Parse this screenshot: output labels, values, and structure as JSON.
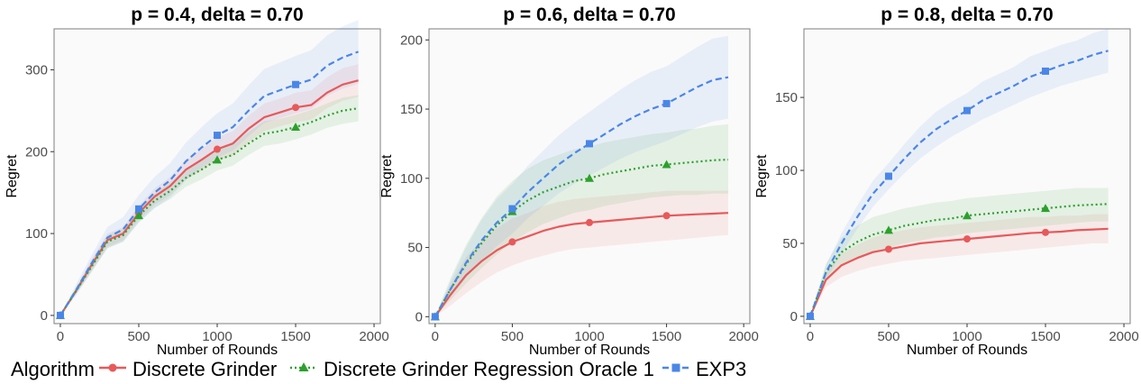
{
  "legend": {
    "title": "Algorithm",
    "entries": [
      "Discrete Grinder",
      "Discrete Grinder Regression Oracle 1",
      "EXP3"
    ]
  },
  "series_styles": [
    {
      "name": "Discrete Grinder",
      "color": "#e8595a",
      "dash": "solid",
      "marker": "circle"
    },
    {
      "name": "Discrete Grinder Regression Oracle 1",
      "color": "#2ca02c",
      "dash": "dotted",
      "marker": "triangle"
    },
    {
      "name": "EXP3",
      "color": "#4a86e8",
      "dash": "dashed",
      "marker": "square"
    }
  ],
  "chart_data": [
    {
      "type": "line",
      "title": "p = 0.4, delta = 0.70",
      "xlabel": "Number of Rounds",
      "ylabel": "Regret",
      "xlim": [
        -40,
        2040
      ],
      "ylim": [
        -10,
        350
      ],
      "xticks": [
        0,
        500,
        1000,
        1500,
        2000
      ],
      "yticks": [
        0,
        100,
        200,
        300
      ],
      "grid": false,
      "x": [
        0,
        100,
        200,
        300,
        400,
        500,
        600,
        700,
        800,
        900,
        1000,
        1100,
        1200,
        1300,
        1400,
        1500,
        1600,
        1700,
        1800,
        1900
      ],
      "marker_x": [
        0,
        500,
        1000,
        1500
      ],
      "series": [
        {
          "name": "Discrete Grinder",
          "values": [
            0,
            30,
            62,
            92,
            100,
            125,
            145,
            158,
            178,
            190,
            203,
            210,
            228,
            242,
            248,
            254,
            257,
            272,
            282,
            287
          ],
          "lower": [
            0,
            26,
            55,
            84,
            92,
            116,
            135,
            147,
            166,
            177,
            189,
            195,
            212,
            225,
            231,
            236,
            239,
            253,
            262,
            267
          ],
          "upper": [
            0,
            34,
            69,
            100,
            108,
            134,
            155,
            169,
            190,
            203,
            217,
            225,
            244,
            259,
            265,
            272,
            275,
            291,
            302,
            307
          ]
        },
        {
          "name": "Discrete Grinder Regression Oracle 1",
          "values": [
            0,
            30,
            60,
            90,
            98,
            122,
            140,
            152,
            168,
            178,
            190,
            196,
            210,
            222,
            225,
            230,
            236,
            244,
            250,
            253
          ],
          "lower": [
            0,
            26,
            53,
            82,
            90,
            114,
            131,
            142,
            157,
            166,
            177,
            183,
            196,
            207,
            210,
            215,
            221,
            229,
            234,
            237
          ],
          "upper": [
            0,
            34,
            67,
            98,
            106,
            130,
            149,
            162,
            179,
            190,
            203,
            209,
            224,
            237,
            240,
            245,
            251,
            259,
            266,
            269
          ]
        },
        {
          "name": "EXP3",
          "values": [
            0,
            31,
            64,
            95,
            105,
            130,
            150,
            165,
            188,
            205,
            220,
            230,
            250,
            268,
            275,
            282,
            288,
            305,
            315,
            322
          ],
          "lower": [
            0,
            24,
            54,
            82,
            90,
            113,
            131,
            144,
            165,
            180,
            193,
            201,
            219,
            235,
            241,
            247,
            252,
            268,
            277,
            283
          ],
          "upper": [
            0,
            38,
            74,
            108,
            120,
            147,
            169,
            186,
            211,
            230,
            247,
            259,
            281,
            301,
            309,
            317,
            324,
            342,
            353,
            361
          ]
        }
      ]
    },
    {
      "type": "line",
      "title": "p = 0.6, delta = 0.70",
      "xlabel": "Number of Rounds",
      "ylabel": "Regret",
      "xlim": [
        -40,
        2040
      ],
      "ylim": [
        -5,
        208
      ],
      "xticks": [
        0,
        500,
        1000,
        1500,
        2000
      ],
      "yticks": [
        0,
        50,
        100,
        150,
        200
      ],
      "grid": false,
      "x": [
        0,
        100,
        200,
        300,
        400,
        500,
        600,
        700,
        800,
        900,
        1000,
        1100,
        1200,
        1300,
        1400,
        1500,
        1600,
        1700,
        1800,
        1900
      ],
      "marker_x": [
        0,
        500,
        1000,
        1500
      ],
      "series": [
        {
          "name": "Discrete Grinder",
          "values": [
            0,
            16,
            30,
            40,
            48,
            54,
            58,
            62,
            65,
            67,
            68,
            69,
            70,
            71,
            72,
            73,
            73.5,
            74,
            74.5,
            75
          ],
          "lower": [
            0,
            8,
            17,
            25,
            32,
            37,
            41,
            44,
            47,
            49,
            50,
            51,
            52,
            53,
            54,
            55,
            56,
            57,
            58,
            59
          ],
          "upper": [
            0,
            24,
            43,
            55,
            64,
            71,
            75,
            80,
            83,
            85,
            86,
            87,
            88,
            89,
            90,
            91,
            91,
            91,
            91,
            91
          ]
        },
        {
          "name": "Discrete Grinder Regression Oracle 1",
          "values": [
            0,
            20,
            38,
            53,
            66,
            76,
            84,
            90,
            94,
            98,
            100,
            103,
            105,
            107,
            109,
            110,
            111,
            112,
            113,
            113.5
          ],
          "lower": [
            0,
            12,
            24,
            35,
            45,
            54,
            61,
            67,
            71,
            75,
            77,
            80,
            82,
            84,
            86,
            87,
            88,
            88,
            89,
            89
          ],
          "upper": [
            0,
            28,
            52,
            71,
            87,
            98,
            107,
            113,
            117,
            121,
            123,
            126,
            128,
            130,
            132,
            133,
            135,
            136,
            138,
            139
          ]
        },
        {
          "name": "EXP3",
          "values": [
            0,
            20,
            39,
            55,
            68,
            78,
            90,
            100,
            110,
            118,
            125,
            132,
            139,
            145,
            150,
            154,
            160,
            166,
            171,
            173
          ],
          "lower": [
            0,
            14,
            28,
            40,
            51,
            60,
            71,
            80,
            89,
            96,
            102,
            108,
            114,
            119,
            123,
            127,
            132,
            137,
            141,
            143
          ],
          "upper": [
            0,
            26,
            50,
            70,
            85,
            96,
            109,
            120,
            131,
            140,
            148,
            156,
            164,
            171,
            177,
            181,
            188,
            195,
            201,
            203
          ]
        }
      ]
    },
    {
      "type": "line",
      "title": "p = 0.8, delta = 0.70",
      "xlabel": "Number of Rounds",
      "ylabel": "Regret",
      "xlim": [
        -40,
        2040
      ],
      "ylim": [
        -5,
        197
      ],
      "xticks": [
        0,
        500,
        1000,
        1500,
        2000
      ],
      "yticks": [
        0,
        50,
        100,
        150
      ],
      "grid": false,
      "x": [
        0,
        100,
        200,
        300,
        400,
        500,
        600,
        700,
        800,
        900,
        1000,
        1100,
        1200,
        1300,
        1400,
        1500,
        1600,
        1700,
        1800,
        1900
      ],
      "marker_x": [
        0,
        500,
        1000,
        1500
      ],
      "series": [
        {
          "name": "Discrete Grinder",
          "values": [
            0,
            25,
            35,
            40,
            44,
            46,
            48,
            50,
            51,
            52,
            53,
            54,
            55,
            56,
            57,
            57.5,
            58,
            59,
            59.5,
            60
          ],
          "lower": [
            0,
            20,
            27,
            31,
            34,
            36,
            38,
            39,
            40,
            41,
            42,
            43,
            44,
            45,
            46,
            47,
            48,
            49,
            50,
            50
          ],
          "upper": [
            0,
            30,
            43,
            49,
            54,
            57,
            59,
            61,
            62,
            63,
            64,
            65,
            66,
            67,
            68,
            68,
            69,
            69,
            70,
            70
          ]
        },
        {
          "name": "Discrete Grinder Regression Oracle 1",
          "values": [
            0,
            30,
            44,
            51,
            56,
            59,
            62,
            64,
            66,
            67,
            69,
            70,
            71,
            72,
            73,
            74,
            75,
            76,
            76.5,
            77
          ],
          "lower": [
            0,
            24,
            34,
            40,
            44,
            47,
            50,
            52,
            54,
            55,
            57,
            58,
            59,
            60,
            61,
            62,
            63,
            64,
            65,
            65
          ],
          "upper": [
            0,
            36,
            54,
            62,
            68,
            71,
            74,
            76,
            78,
            79,
            81,
            82,
            83,
            84,
            85,
            86,
            87,
            88,
            88,
            88
          ]
        },
        {
          "name": "EXP3",
          "values": [
            0,
            30,
            50,
            68,
            84,
            96,
            108,
            119,
            128,
            135,
            141,
            148,
            153,
            158,
            164,
            168,
            172,
            175,
            179,
            182
          ],
          "lower": [
            0,
            25,
            43,
            60,
            75,
            87,
            98,
            108,
            116,
            123,
            129,
            135,
            140,
            145,
            150,
            154,
            158,
            161,
            164,
            167
          ],
          "upper": [
            0,
            35,
            57,
            76,
            93,
            105,
            118,
            130,
            140,
            147,
            153,
            161,
            166,
            171,
            178,
            182,
            186,
            189,
            194,
            197
          ]
        }
      ]
    }
  ]
}
